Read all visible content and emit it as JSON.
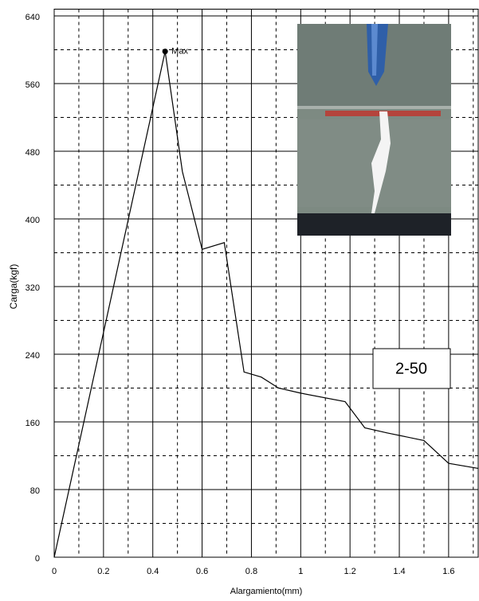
{
  "chart_data": {
    "type": "line",
    "x_label": "Alargamiento(mm)",
    "y_label": "Carga(kgf)",
    "x": [
      0,
      0.45,
      0.52,
      0.6,
      0.69,
      0.77,
      0.84,
      0.91,
      1.0,
      1.18,
      1.26,
      1.35,
      1.5,
      1.6,
      1.72
    ],
    "series": [
      {
        "name": "Carga",
        "color": "#000000",
        "values": [
          0,
          598,
          456,
          364,
          372,
          219,
          213,
          200,
          194,
          184,
          153,
          147,
          138,
          111,
          105
        ]
      }
    ],
    "max_label": "Max",
    "xlim": [
      0,
      1.72
    ],
    "ylim": [
      0,
      648
    ],
    "xticks": [
      0,
      0.2,
      0.4,
      0.6,
      0.8,
      1,
      1.2,
      1.4,
      1.6
    ],
    "yticks": [
      0,
      80,
      160,
      240,
      320,
      400,
      480,
      560,
      640
    ],
    "xticks_minor": [
      0.1,
      0.3,
      0.5,
      0.7,
      0.9,
      1.1,
      1.3,
      1.5,
      1.7
    ],
    "yticks_minor": [
      40,
      120,
      200,
      280,
      360,
      440,
      520,
      600
    ],
    "grid": true,
    "inset_label": "2-50"
  }
}
